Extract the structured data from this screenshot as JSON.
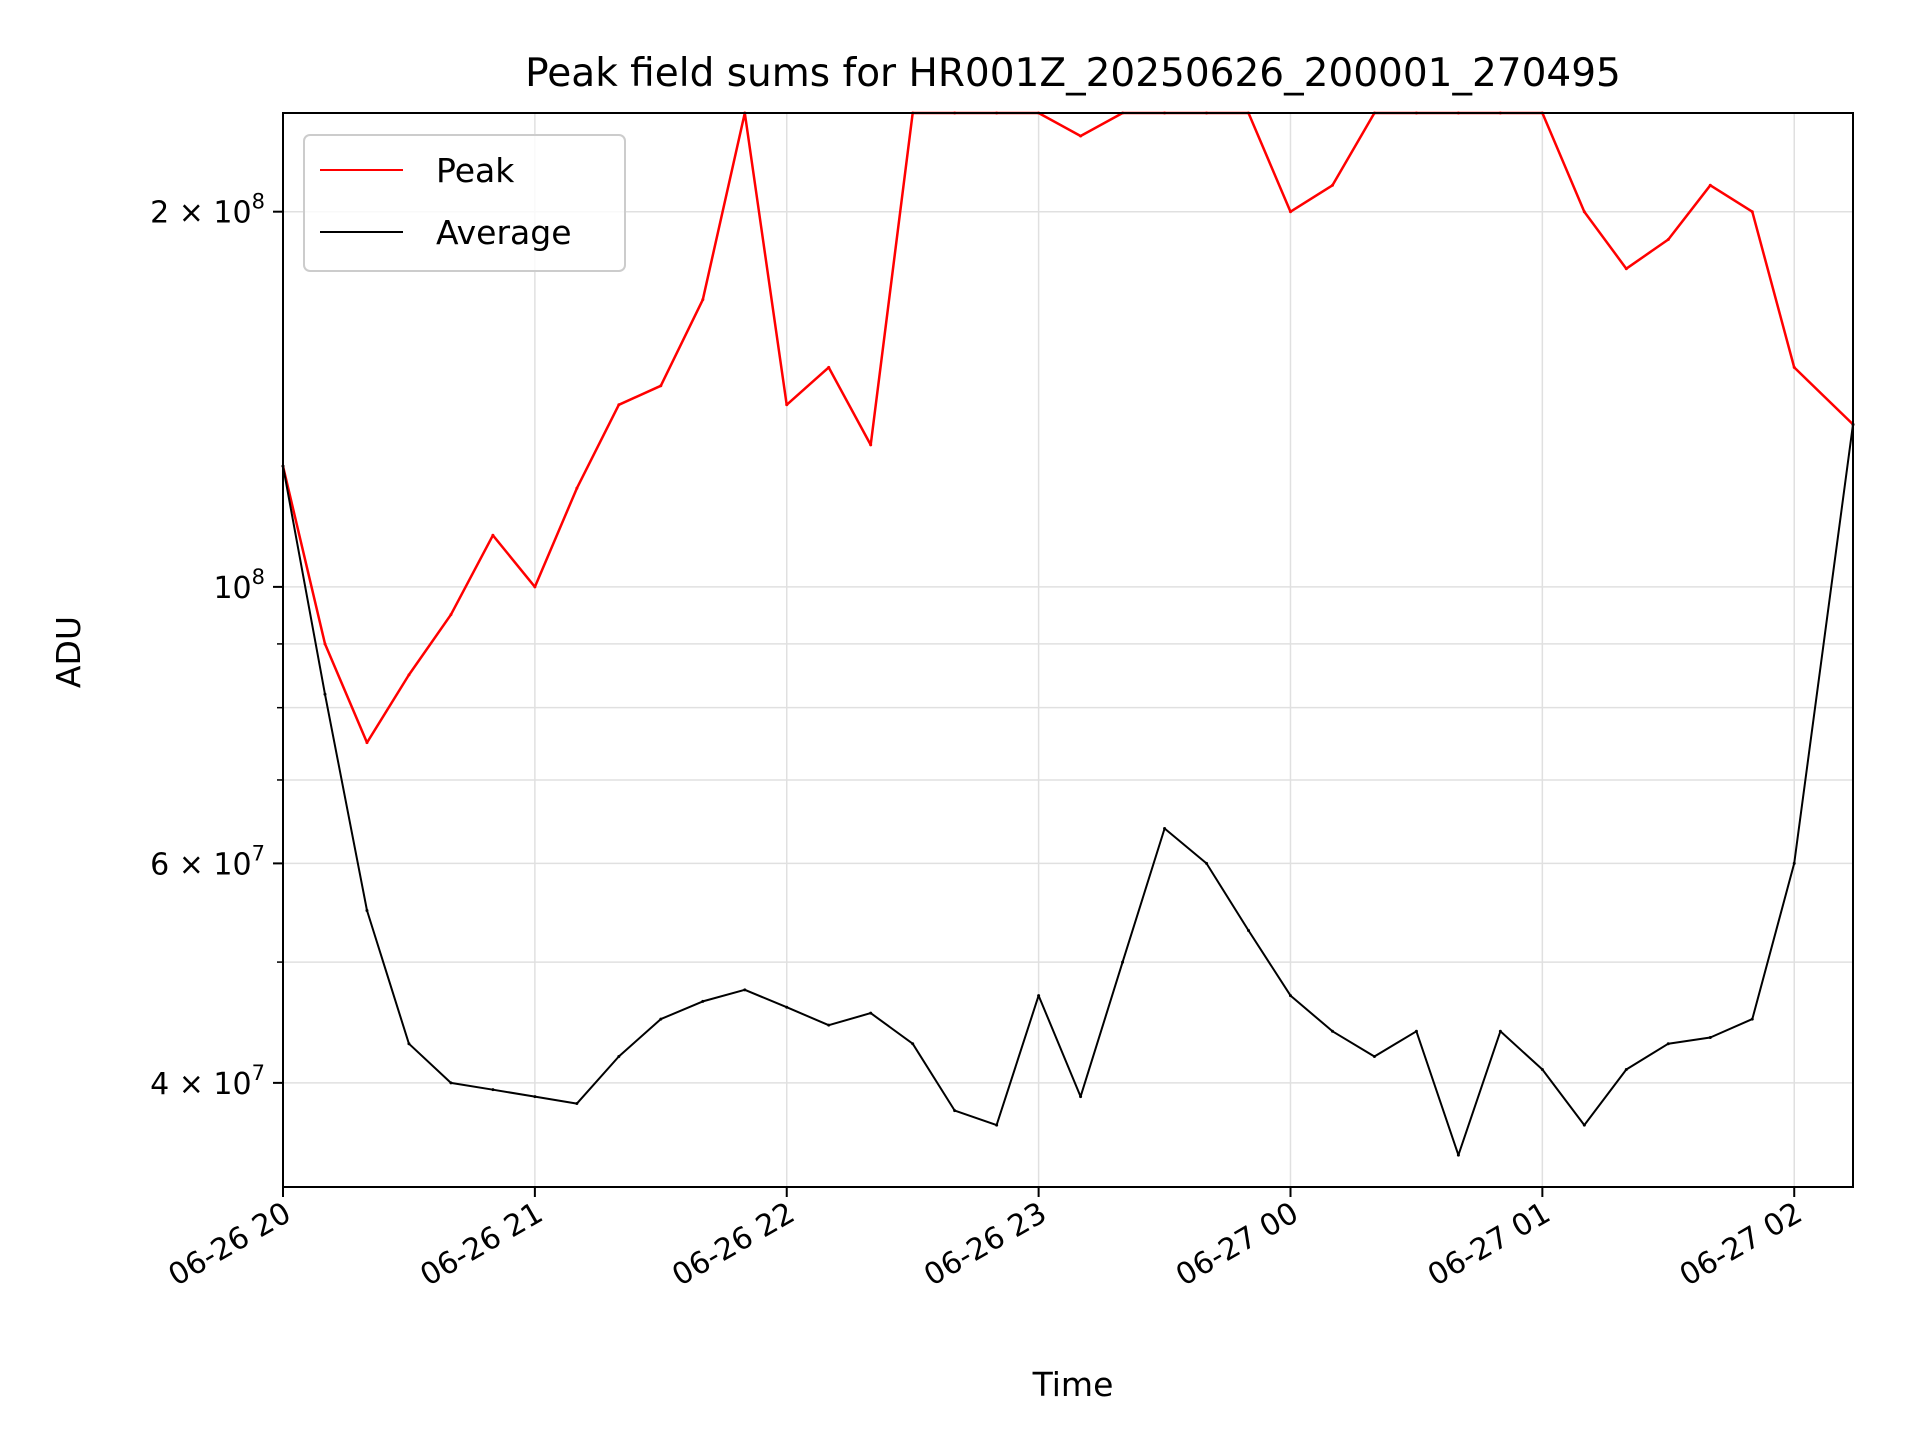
{
  "chart_data": {
    "type": "line",
    "title": "Peak field sums for HR001Z_20250626_200001_270495",
    "xlabel": "Time",
    "ylabel": "ADU",
    "y_scale": "log",
    "ylim": [
      33000000,
      240000000
    ],
    "xlim": [
      "06-26 20:00",
      "06-27 02:14"
    ],
    "grid": true,
    "legend": {
      "placement": "top-left",
      "entries": [
        "Peak",
        "Average"
      ]
    },
    "x_ticks": [
      {
        "time": "06-26 20:00",
        "label": "06-26 20"
      },
      {
        "time": "06-26 21:00",
        "label": "06-26 21"
      },
      {
        "time": "06-26 22:00",
        "label": "06-26 22"
      },
      {
        "time": "06-26 23:00",
        "label": "06-26 23"
      },
      {
        "time": "06-27 00:00",
        "label": "06-27 00"
      },
      {
        "time": "06-27 01:00",
        "label": "06-27 01"
      },
      {
        "time": "06-27 02:00",
        "label": "06-27 02"
      }
    ],
    "y_ticks": [
      {
        "value": 40000000,
        "base": "4",
        "exp": "7"
      },
      {
        "value": 60000000,
        "base": "6",
        "exp": "7"
      },
      {
        "value": 100000000,
        "base": "",
        "exp": "8"
      },
      {
        "value": 200000000,
        "base": "2",
        "exp": "8"
      }
    ],
    "series": [
      {
        "name": "Average",
        "color": "#000000",
        "x": [
          "06-26 20:00",
          "06-26 20:10",
          "06-26 20:20",
          "06-26 20:30",
          "06-26 20:40",
          "06-26 20:50",
          "06-26 21:00",
          "06-26 21:10",
          "06-26 21:20",
          "06-26 21:30",
          "06-26 21:40",
          "06-26 21:50",
          "06-26 22:00",
          "06-26 22:10",
          "06-26 22:20",
          "06-26 22:30",
          "06-26 22:40",
          "06-26 22:50",
          "06-26 23:00",
          "06-26 23:10",
          "06-26 23:20",
          "06-26 23:30",
          "06-26 23:40",
          "06-26 23:50",
          "06-27 00:00",
          "06-27 00:10",
          "06-27 00:20",
          "06-27 00:30",
          "06-27 00:40",
          "06-27 00:50",
          "06-27 01:00",
          "06-27 01:10",
          "06-27 01:20",
          "06-27 01:30",
          "06-27 01:40",
          "06-27 01:50",
          "06-27 02:00",
          "06-27 02:14"
        ],
        "values": [
          125000000,
          82000000,
          55000000,
          43000000,
          40000000,
          39500000,
          39000000,
          38500000,
          42000000,
          45000000,
          46500000,
          47500000,
          46000000,
          44500000,
          45500000,
          43000000,
          38000000,
          37000000,
          47000000,
          39000000,
          50000000,
          64000000,
          60000000,
          53000000,
          47000000,
          44000000,
          42000000,
          44000000,
          35000000,
          44000000,
          41000000,
          37000000,
          41000000,
          43000000,
          43500000,
          45000000,
          60000000,
          135000000
        ]
      },
      {
        "name": "Peak",
        "color": "#ff0000",
        "x": [
          "06-26 20:00",
          "06-26 20:10",
          "06-26 20:20",
          "06-26 20:30",
          "06-26 20:40",
          "06-26 20:50",
          "06-26 21:00",
          "06-26 21:10",
          "06-26 21:20",
          "06-26 21:30",
          "06-26 21:40",
          "06-26 21:50",
          "06-26 22:00",
          "06-26 22:10",
          "06-26 22:20",
          "06-26 22:30",
          "06-26 22:40",
          "06-26 22:50",
          "06-26 23:00",
          "06-26 23:10",
          "06-26 23:20",
          "06-26 23:30",
          "06-26 23:40",
          "06-26 23:50",
          "06-27 00:00",
          "06-27 00:10",
          "06-27 00:20",
          "06-27 00:30",
          "06-27 00:40",
          "06-27 00:50",
          "06-27 01:00",
          "06-27 01:10",
          "06-27 01:20",
          "06-27 01:30",
          "06-27 01:40",
          "06-27 01:50",
          "06-27 02:00",
          "06-27 02:14"
        ],
        "values": [
          125000000,
          90000000,
          75000000,
          85000000,
          95000000,
          110000000,
          100000000,
          120000000,
          140000000,
          145000000,
          170000000,
          240000000,
          140000000,
          150000000,
          130000000,
          240000000,
          240000000,
          240000000,
          240000000,
          230000000,
          240000000,
          240000000,
          240000000,
          240000000,
          200000000,
          210000000,
          240000000,
          240000000,
          240000000,
          240000000,
          240000000,
          200000000,
          180000000,
          190000000,
          210000000,
          200000000,
          150000000,
          135000000
        ]
      }
    ]
  }
}
